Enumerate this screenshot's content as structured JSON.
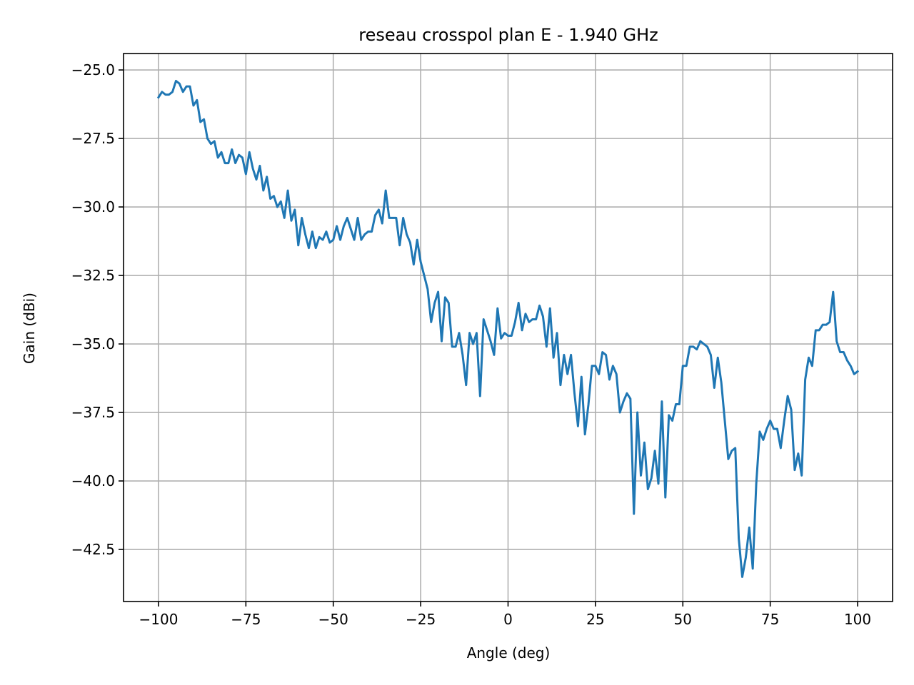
{
  "chart_data": {
    "type": "line",
    "title": "reseau crosspol plan E - 1.940 GHz",
    "xlabel": "Angle (deg)",
    "ylabel": "Gain (dBi)",
    "xlim": [
      -110,
      110
    ],
    "ylim": [
      -44.4,
      -24.4
    ],
    "grid": true,
    "line_color": "#1f77b4",
    "x_ticks": [
      -100,
      -75,
      -50,
      -25,
      0,
      25,
      50,
      75,
      100
    ],
    "x_tick_labels": [
      "−100",
      "−75",
      "−50",
      "−25",
      "0",
      "25",
      "50",
      "75",
      "100"
    ],
    "y_ticks": [
      -25,
      -27.5,
      -30,
      -32.5,
      -35,
      -37.5,
      -40,
      -42.5
    ],
    "y_tick_labels": [
      "−25.0",
      "−27.5",
      "−30.0",
      "−32.5",
      "−35.0",
      "−37.5",
      "−40.0",
      "−42.5"
    ],
    "x": [
      -100,
      -99,
      -98,
      -97,
      -96,
      -95,
      -94,
      -93,
      -92,
      -91,
      -90,
      -89,
      -88,
      -87,
      -86,
      -85,
      -84,
      -83,
      -82,
      -81,
      -80,
      -79,
      -78,
      -77,
      -76,
      -75,
      -74,
      -73,
      -72,
      -71,
      -70,
      -69,
      -68,
      -67,
      -66,
      -65,
      -64,
      -63,
      -62,
      -61,
      -60,
      -59,
      -58,
      -57,
      -56,
      -55,
      -54,
      -53,
      -52,
      -51,
      -50,
      -49,
      -48,
      -47,
      -46,
      -45,
      -44,
      -43,
      -42,
      -41,
      -40,
      -39,
      -38,
      -37,
      -36,
      -35,
      -34,
      -33,
      -32,
      -31,
      -30,
      -29,
      -28,
      -27,
      -26,
      -25,
      -24,
      -23,
      -22,
      -21,
      -20,
      -19,
      -18,
      -17,
      -16,
      -15,
      -14,
      -13,
      -12,
      -11,
      -10,
      -9,
      -8,
      -7,
      -6,
      -5,
      -4,
      -3,
      -2,
      -1,
      0,
      1,
      2,
      3,
      4,
      5,
      6,
      7,
      8,
      9,
      10,
      11,
      12,
      13,
      14,
      15,
      16,
      17,
      18,
      19,
      20,
      21,
      22,
      23,
      24,
      25,
      26,
      27,
      28,
      29,
      30,
      31,
      32,
      33,
      34,
      35,
      36,
      37,
      38,
      39,
      40,
      41,
      42,
      43,
      44,
      45,
      46,
      47,
      48,
      49,
      50,
      51,
      52,
      53,
      54,
      55,
      56,
      57,
      58,
      59,
      60,
      61,
      62,
      63,
      64,
      65,
      66,
      67,
      68,
      69,
      70,
      71,
      72,
      73,
      74,
      75,
      76,
      77,
      78,
      79,
      80,
      81,
      82,
      83,
      84,
      85,
      86,
      87,
      88,
      89,
      90,
      91,
      92,
      93,
      94,
      95,
      96,
      97,
      98,
      99,
      100
    ],
    "y": [
      -26.0,
      -25.8,
      -25.9,
      -25.9,
      -25.8,
      -25.4,
      -25.5,
      -25.8,
      -25.6,
      -25.6,
      -26.3,
      -26.1,
      -26.9,
      -26.8,
      -27.5,
      -27.7,
      -27.6,
      -28.2,
      -28.0,
      -28.4,
      -28.4,
      -27.9,
      -28.4,
      -28.1,
      -28.2,
      -28.8,
      -28.0,
      -28.6,
      -29.0,
      -28.5,
      -29.4,
      -28.9,
      -29.7,
      -29.6,
      -30.0,
      -29.8,
      -30.4,
      -29.4,
      -30.5,
      -30.1,
      -31.4,
      -30.4,
      -31.0,
      -31.5,
      -30.9,
      -31.5,
      -31.1,
      -31.2,
      -30.9,
      -31.3,
      -31.2,
      -30.7,
      -31.2,
      -30.7,
      -30.4,
      -30.8,
      -31.2,
      -30.4,
      -31.2,
      -31.0,
      -30.9,
      -30.9,
      -30.3,
      -30.1,
      -30.6,
      -29.4,
      -30.4,
      -30.4,
      -30.4,
      -31.4,
      -30.4,
      -31.0,
      -31.3,
      -32.1,
      -31.2,
      -32.0,
      -32.5,
      -33.0,
      -34.2,
      -33.5,
      -33.1,
      -34.9,
      -33.3,
      -33.5,
      -35.1,
      -35.1,
      -34.6,
      -35.4,
      -36.5,
      -34.6,
      -35.0,
      -34.6,
      -36.9,
      -34.1,
      -34.5,
      -34.9,
      -35.4,
      -33.7,
      -34.8,
      -34.6,
      -34.7,
      -34.7,
      -34.2,
      -33.5,
      -34.5,
      -33.9,
      -34.2,
      -34.1,
      -34.1,
      -33.6,
      -34.0,
      -35.1,
      -33.7,
      -35.5,
      -34.6,
      -36.5,
      -35.4,
      -36.1,
      -35.4,
      -36.8,
      -38.0,
      -36.2,
      -38.3,
      -37.2,
      -35.8,
      -35.8,
      -36.1,
      -35.3,
      -35.4,
      -36.3,
      -35.8,
      -36.1,
      -37.5,
      -37.1,
      -36.8,
      -37.0,
      -41.2,
      -37.5,
      -39.8,
      -38.6,
      -40.3,
      -39.9,
      -38.9,
      -40.1,
      -37.1,
      -40.6,
      -37.6,
      -37.8,
      -37.2,
      -37.2,
      -35.8,
      -35.8,
      -35.1,
      -35.1,
      -35.2,
      -34.9,
      -35.0,
      -35.1,
      -35.4,
      -36.6,
      -35.5,
      -36.4,
      -37.8,
      -39.2,
      -38.9,
      -38.8,
      -42.1,
      -43.5,
      -42.8,
      -41.7,
      -43.2,
      -40.1,
      -38.2,
      -38.5,
      -38.1,
      -37.8,
      -38.1,
      -38.1,
      -38.8,
      -37.8,
      -36.9,
      -37.4,
      -39.6,
      -39.0,
      -39.8,
      -36.3,
      -35.5,
      -35.8,
      -34.5,
      -34.5,
      -34.3,
      -34.3,
      -34.2,
      -33.1,
      -34.9,
      -35.3,
      -35.3,
      -35.6,
      -35.8,
      -36.1,
      -36.0
    ]
  }
}
